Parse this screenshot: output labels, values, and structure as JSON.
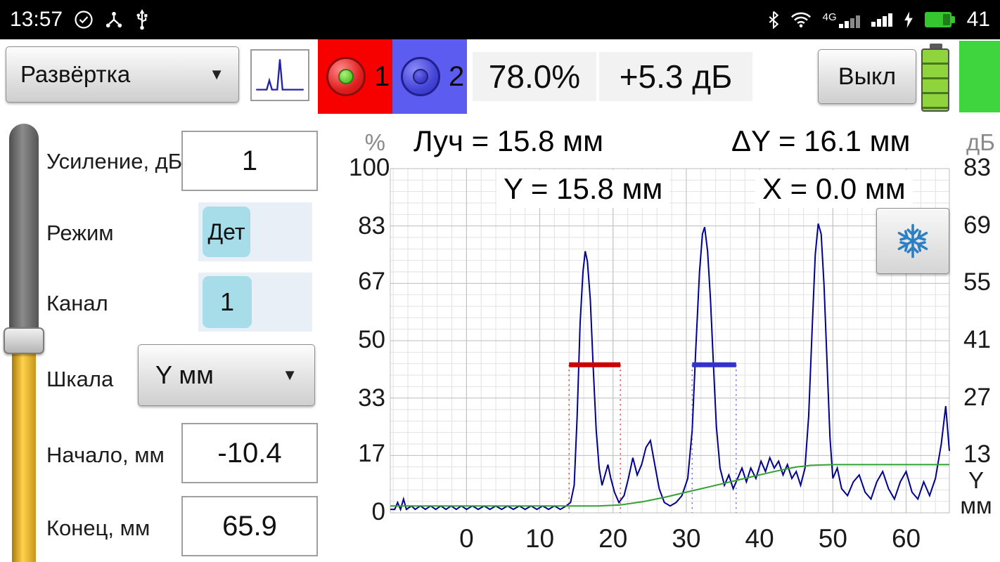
{
  "status_bar": {
    "time": "13:57",
    "network_label": "4G",
    "battery_text": "41"
  },
  "toolbar": {
    "sweep_label": "Развёртка",
    "strobe1_num": "1",
    "strobe2_num": "2",
    "amplitude_readout": "78.0%",
    "gain_readout": "+5.3 дБ",
    "off_button_label": "Выкл"
  },
  "panel": {
    "gain_label": "Усиление, дБ",
    "gain_value": "1",
    "mode_label": "Режим",
    "mode_value": "Дет",
    "channel_label": "Канал",
    "channel_value": "1",
    "scale_label": "Шкала",
    "scale_value": "Y мм",
    "start_label": "Начало, мм",
    "start_value": "-10.4",
    "end_label": "Конец, мм",
    "end_value": "65.9"
  },
  "chart": {
    "readout_ray": "Луч = 15.8 мм",
    "readout_dy": "ΔY = 16.1 мм",
    "readout_y": "Y = 15.8 мм",
    "readout_x": "X = 0.0 мм"
  },
  "chart_data": {
    "type": "line",
    "x_axis": {
      "ticks": [
        0,
        10,
        20,
        30,
        40,
        50,
        60
      ],
      "unit": "Y мм",
      "range": [
        -10.4,
        65.9
      ]
    },
    "left_axis": {
      "unit": "%",
      "ticks": [
        100,
        83,
        67,
        50,
        33,
        17,
        0
      ],
      "range": [
        0,
        100
      ]
    },
    "right_axis": {
      "unit": "дБ",
      "ticks": [
        83,
        69,
        55,
        41,
        27,
        13
      ]
    },
    "series": [
      {
        "name": "echo-signal",
        "color": "#00008f",
        "points": [
          [
            -10.4,
            1
          ],
          [
            -9.8,
            1
          ],
          [
            -9.4,
            3
          ],
          [
            -9,
            1
          ],
          [
            -8.6,
            4
          ],
          [
            -8.2,
            1
          ],
          [
            -7.5,
            2
          ],
          [
            -7,
            1
          ],
          [
            -6.3,
            2
          ],
          [
            -5.6,
            1
          ],
          [
            -4.9,
            2
          ],
          [
            -4.2,
            1
          ],
          [
            -3.5,
            2
          ],
          [
            -2.8,
            1
          ],
          [
            -2.1,
            2
          ],
          [
            -1.4,
            1
          ],
          [
            -0.7,
            2
          ],
          [
            0,
            1
          ],
          [
            0.8,
            2
          ],
          [
            1.6,
            1
          ],
          [
            2.4,
            2
          ],
          [
            3.2,
            1
          ],
          [
            4,
            2
          ],
          [
            4.8,
            1
          ],
          [
            5.6,
            2
          ],
          [
            6.4,
            1
          ],
          [
            7.2,
            2
          ],
          [
            8,
            1
          ],
          [
            8.8,
            2
          ],
          [
            9.6,
            1
          ],
          [
            10.4,
            2
          ],
          [
            11.2,
            1
          ],
          [
            12,
            2
          ],
          [
            12.8,
            1
          ],
          [
            13.6,
            2
          ],
          [
            14.2,
            3
          ],
          [
            14.7,
            8
          ],
          [
            15.1,
            28
          ],
          [
            15.5,
            55
          ],
          [
            15.9,
            70
          ],
          [
            16.2,
            76
          ],
          [
            16.5,
            73
          ],
          [
            16.9,
            62
          ],
          [
            17.3,
            42
          ],
          [
            17.7,
            24
          ],
          [
            18.1,
            13
          ],
          [
            18.5,
            8
          ],
          [
            18.9,
            11
          ],
          [
            19.3,
            14
          ],
          [
            19.7,
            10
          ],
          [
            20.2,
            6
          ],
          [
            20.8,
            3
          ],
          [
            21.5,
            5
          ],
          [
            22.1,
            10
          ],
          [
            22.7,
            16
          ],
          [
            23.3,
            11
          ],
          [
            23.9,
            14
          ],
          [
            24.5,
            19
          ],
          [
            25.1,
            21
          ],
          [
            25.7,
            14
          ],
          [
            26.3,
            7
          ],
          [
            27,
            3
          ],
          [
            27.8,
            2
          ],
          [
            28.6,
            3
          ],
          [
            29.4,
            5
          ],
          [
            30.2,
            10
          ],
          [
            30.8,
            24
          ],
          [
            31.3,
            48
          ],
          [
            31.8,
            70
          ],
          [
            32.2,
            81
          ],
          [
            32.5,
            83
          ],
          [
            32.9,
            76
          ],
          [
            33.3,
            62
          ],
          [
            33.7,
            43
          ],
          [
            34.1,
            25
          ],
          [
            34.6,
            13
          ],
          [
            35.2,
            8
          ],
          [
            35.8,
            11
          ],
          [
            36.4,
            7
          ],
          [
            37,
            10
          ],
          [
            37.6,
            13
          ],
          [
            38.2,
            9
          ],
          [
            38.8,
            13
          ],
          [
            39.5,
            10
          ],
          [
            40.2,
            15
          ],
          [
            40.8,
            12
          ],
          [
            41.4,
            16
          ],
          [
            42,
            13
          ],
          [
            42.6,
            15
          ],
          [
            43.2,
            11
          ],
          [
            43.8,
            14
          ],
          [
            44.4,
            10
          ],
          [
            45,
            12
          ],
          [
            45.6,
            8
          ],
          [
            46.2,
            13
          ],
          [
            46.7,
            28
          ],
          [
            47.2,
            55
          ],
          [
            47.6,
            75
          ],
          [
            48,
            84
          ],
          [
            48.4,
            81
          ],
          [
            48.8,
            66
          ],
          [
            49.2,
            44
          ],
          [
            49.6,
            22
          ],
          [
            50,
            10
          ],
          [
            50.6,
            13
          ],
          [
            51.2,
            7
          ],
          [
            52,
            5
          ],
          [
            52.8,
            9
          ],
          [
            53.6,
            11
          ],
          [
            54.4,
            6
          ],
          [
            55.2,
            4
          ],
          [
            56,
            9
          ],
          [
            56.8,
            12
          ],
          [
            57.6,
            7
          ],
          [
            58.4,
            4
          ],
          [
            59.2,
            9
          ],
          [
            60,
            12
          ],
          [
            60.8,
            6
          ],
          [
            61.6,
            4
          ],
          [
            62.4,
            9
          ],
          [
            63.2,
            5
          ],
          [
            64,
            10
          ],
          [
            64.8,
            20
          ],
          [
            65.4,
            31
          ],
          [
            65.9,
            18
          ]
        ]
      },
      {
        "name": "tcg-curve",
        "color": "#33a033",
        "points": [
          [
            -10.4,
            2
          ],
          [
            18,
            2
          ],
          [
            21,
            2.3
          ],
          [
            24,
            3.2
          ],
          [
            27,
            4.5
          ],
          [
            30,
            6
          ],
          [
            33,
            7.5
          ],
          [
            36,
            9
          ],
          [
            39,
            10.5
          ],
          [
            42,
            12
          ],
          [
            45,
            13.3
          ],
          [
            47,
            13.8
          ],
          [
            50,
            14
          ],
          [
            65.9,
            14
          ]
        ]
      }
    ],
    "gates": [
      {
        "name": "gate-1",
        "color": "#cc0000",
        "x_start": 14.0,
        "x_end": 21.0,
        "level": 43
      },
      {
        "name": "gate-2",
        "color": "#3333cc",
        "x_start": 30.8,
        "x_end": 36.8,
        "level": 43
      }
    ]
  }
}
